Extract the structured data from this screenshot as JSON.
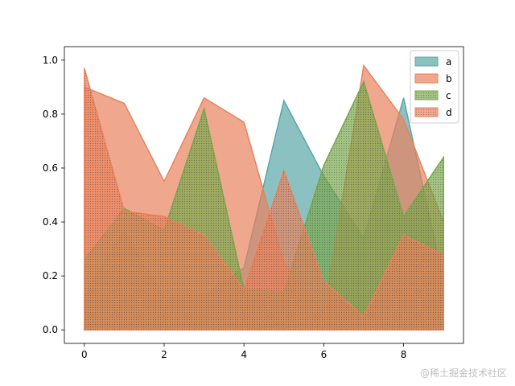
{
  "chart_data": {
    "type": "area",
    "x": [
      0,
      1,
      2,
      3,
      4,
      5,
      6,
      7,
      8,
      9
    ],
    "xlim": [
      -0.5,
      9.5
    ],
    "ylim": [
      -0.05,
      1.05
    ],
    "xticks": [
      "0",
      "2",
      "4",
      "6",
      "8"
    ],
    "yticks": [
      "0.0",
      "0.2",
      "0.4",
      "0.6",
      "0.8",
      "1.0"
    ],
    "grid": false,
    "legend_position": "top-right",
    "series": [
      {
        "name": "a",
        "color": "#5ba6a8",
        "hatch": false,
        "values": [
          0.13,
          0.37,
          0.12,
          0.13,
          0.23,
          0.85,
          0.57,
          0.34,
          0.86,
          0.18
        ]
      },
      {
        "name": "b",
        "color": "#e8825d",
        "hatch": false,
        "values": [
          0.9,
          0.84,
          0.55,
          0.86,
          0.77,
          0.25,
          0.06,
          0.98,
          0.78,
          0.4
        ]
      },
      {
        "name": "c",
        "color": "#7aa84f",
        "hatch": true,
        "values": [
          0.26,
          0.45,
          0.37,
          0.82,
          0.15,
          0.14,
          0.61,
          0.92,
          0.42,
          0.64
        ]
      },
      {
        "name": "d",
        "color": "#e8825d",
        "hatch": true,
        "values": [
          0.97,
          0.44,
          0.42,
          0.35,
          0.15,
          0.59,
          0.18,
          0.05,
          0.35,
          0.28
        ]
      }
    ]
  },
  "watermark": "@稀土掘金技术社区"
}
